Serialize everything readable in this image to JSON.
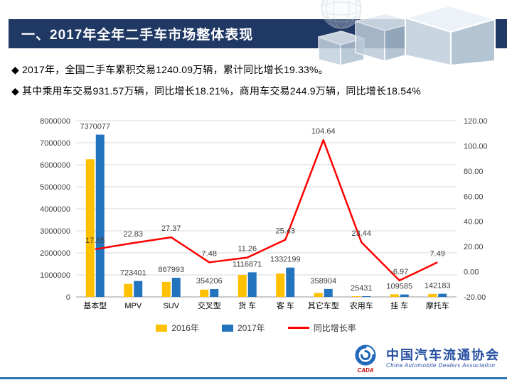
{
  "header": {
    "title": "一、2017年全年二手车市场整体表现"
  },
  "bullets": [
    "◆ 2017年，全国二手车累积交易1240.09万辆，累计同比增长19.33%。",
    "◆ 其中乘用车交易931.57万辆，同比增长18.21%，商用车交易244.9万辆，同比增长18.54%"
  ],
  "chart_data": {
    "type": "bar",
    "subtype": "combo-bar-line",
    "categories": [
      "基本型",
      "MPV",
      "SUV",
      "交叉型",
      "货 车",
      "客 车",
      "其它车型",
      "农用车",
      "挂 车",
      "摩托车"
    ],
    "series": [
      {
        "name": "2016年",
        "type": "bar",
        "color": "#FFC000",
        "values": [
          6250000,
          590000,
          680000,
          330000,
          1000000,
          1060000,
          175000,
          20600,
          117800,
          132300
        ]
      },
      {
        "name": "2017年",
        "type": "bar",
        "color": "#2274BE",
        "values": [
          7370077,
          723401,
          867993,
          354206,
          1116871,
          1332199,
          358904,
          25431,
          109585,
          142183
        ],
        "data_labels": [
          "7370077",
          "723401",
          "867993",
          "354206",
          "1116871",
          "1332199",
          "358904",
          "25431",
          "109585",
          "142183"
        ]
      },
      {
        "name": "同比增长率",
        "type": "line",
        "color": "#FF0000",
        "axis": "right",
        "values": [
          17.85,
          22.83,
          27.37,
          7.48,
          11.26,
          25.43,
          104.64,
          23.44,
          -6.97,
          7.49
        ],
        "data_labels": [
          "17.85",
          "22.83",
          "27.37",
          "7.48",
          "11.26",
          "25.43",
          "104.64",
          "23.44",
          "-6.97",
          "7.49"
        ]
      }
    ],
    "left_axis": {
      "min": 0,
      "max": 8000000,
      "tick_labels": [
        "0",
        "1000000",
        "2000000",
        "3000000",
        "4000000",
        "5000000",
        "6000000",
        "7000000",
        "8000000"
      ]
    },
    "right_axis": {
      "min": -20,
      "max": 120,
      "tick_labels": [
        "-20.00",
        "0.00",
        "20.00",
        "40.00",
        "60.00",
        "80.00",
        "100.00",
        "120.00"
      ]
    },
    "grid": true,
    "legend_position": "bottom"
  },
  "logo": {
    "emblem": "cada-emblem-icon",
    "abbr": "CADA",
    "name_cn": "中国汽车流通协会",
    "name_en": "China Automobile Dealers Association"
  },
  "colors": {
    "banner": "#1F3864",
    "bottom_rule": "#2E74B5",
    "bar_2016": "#FFC000",
    "bar_2017": "#2274BE",
    "growth_line": "#FF0000"
  }
}
